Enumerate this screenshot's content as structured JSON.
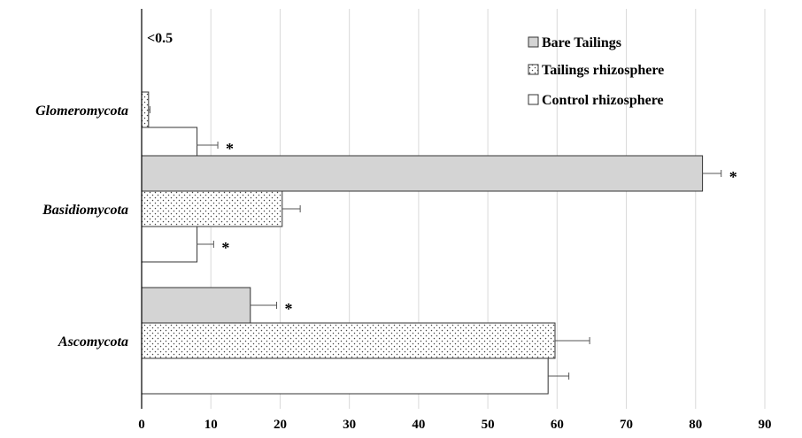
{
  "chart_data": {
    "type": "bar",
    "orientation": "horizontal",
    "categories": [
      "Glomeromycota",
      "Basidiomycota",
      "Ascomycota"
    ],
    "series": [
      {
        "name": "Bare Tailings",
        "values": [
          0,
          81.0,
          15.7
        ],
        "errors": [
          0,
          2.7,
          3.8
        ],
        "significant": [
          false,
          true,
          true
        ],
        "pattern": "solid-gray",
        "fill": "#d4d4d4"
      },
      {
        "name": "Tailings rhizosphere",
        "values": [
          1.0,
          20.3,
          59.7
        ],
        "errors": [
          0.2,
          2.6,
          5.0
        ],
        "significant": [
          false,
          false,
          false
        ],
        "pattern": "dotted",
        "fill": "#ffffff"
      },
      {
        "name": "Control rhizosphere",
        "values": [
          8.0,
          8.0,
          58.7
        ],
        "errors": [
          3.0,
          2.4,
          3.0
        ],
        "significant": [
          true,
          true,
          false
        ],
        "pattern": "white",
        "fill": "#ffffff"
      }
    ],
    "xlim": [
      0,
      90
    ],
    "xticks": [
      0,
      10,
      20,
      30,
      40,
      50,
      60,
      70,
      80,
      90
    ],
    "grid": "vertical",
    "legend": "top-right",
    "annotations": [
      {
        "text": "<0.5",
        "near": "Glomeromycota"
      }
    ],
    "significance_marker": "*",
    "title": "",
    "xlabel": "",
    "ylabel": ""
  }
}
